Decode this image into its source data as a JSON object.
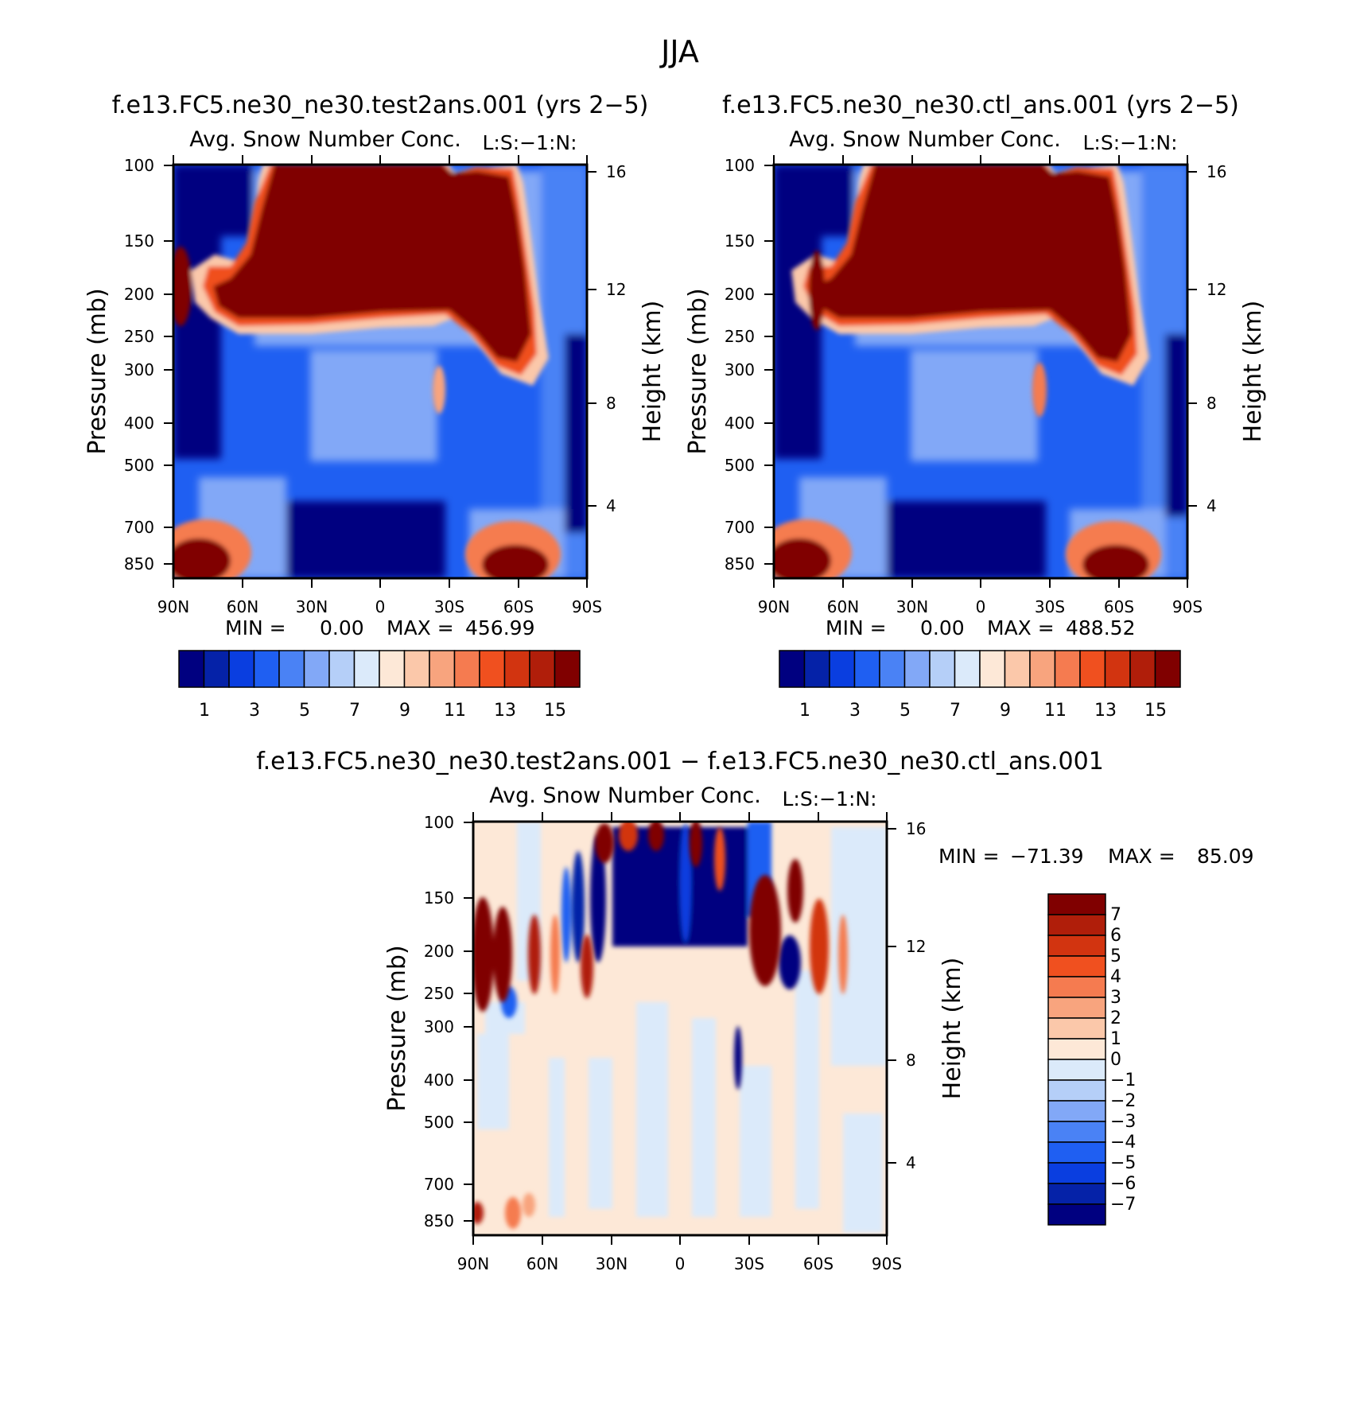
{
  "title": "JJA",
  "panels": [
    {
      "id": "test",
      "case_title": "f.e13.FC5.ne30_ne30.test2ans.001 (yrs 2−5)",
      "var_title": "Avg. Snow Number Conc.",
      "corner_label": "L:S:−1:N:",
      "ylabel": "Pressure (mb)",
      "y2label": "Height (km)",
      "min_label": "MIN =",
      "min_value": "0.00",
      "max_label": "MAX =",
      "max_value": "456.99"
    },
    {
      "id": "ctl",
      "case_title": "f.e13.FC5.ne30_ne30.ctl_ans.001 (yrs 2−5)",
      "var_title": "Avg. Snow Number Conc.",
      "corner_label": "L:S:−1:N:",
      "ylabel": "Pressure (mb)",
      "y2label": "Height (km)",
      "min_label": "MIN =",
      "min_value": "0.00",
      "max_label": "MAX =",
      "max_value": "488.52"
    },
    {
      "id": "diff",
      "case_title": "f.e13.FC5.ne30_ne30.test2ans.001 − f.e13.FC5.ne30_ne30.ctl_ans.001",
      "var_title": "Avg. Snow Number Conc.",
      "corner_label": "L:S:−1:N:",
      "ylabel": "Pressure (mb)",
      "y2label": "Height (km)",
      "min_label": "MIN =",
      "min_value": "−71.39",
      "max_label": "MAX =",
      "max_value": "85.09"
    }
  ],
  "chart_data": [
    {
      "type": "heatmap",
      "title": "Avg. Snow Number Conc.",
      "xlabel": "",
      "ylabel": "Pressure (mb)",
      "y2label": "Height (km)",
      "x_ticks": [
        "90N",
        "60N",
        "30N",
        "0",
        "30S",
        "60S",
        "90S"
      ],
      "y_ticks": [
        "100",
        "150",
        "200",
        "250",
        "300",
        "400",
        "500",
        "700",
        "850"
      ],
      "y2_ticks": [
        "16",
        "12",
        "8",
        "4"
      ],
      "colorbar_labels": [
        "1",
        "3",
        "5",
        "7",
        "9",
        "11",
        "13",
        "15"
      ],
      "levels": [
        1,
        2,
        3,
        4,
        5,
        6,
        7,
        8,
        9,
        10,
        11,
        12,
        13,
        14,
        15
      ],
      "colors": [
        "#000080",
        "#0522a8",
        "#0a3ee0",
        "#1f5ff2",
        "#4a82f5",
        "#82a8f7",
        "#b5cff8",
        "#dbeafa",
        "#fde8d7",
        "#fbc8aa",
        "#f8a47e",
        "#f57b50",
        "#f0501f",
        "#d23410",
        "#b01e0a",
        "#800000"
      ],
      "min": 0.0,
      "max": 456.99
    },
    {
      "type": "heatmap",
      "title": "Avg. Snow Number Conc.",
      "xlabel": "",
      "ylabel": "Pressure (mb)",
      "y2label": "Height (km)",
      "x_ticks": [
        "90N",
        "60N",
        "30N",
        "0",
        "30S",
        "60S",
        "90S"
      ],
      "y_ticks": [
        "100",
        "150",
        "200",
        "250",
        "300",
        "400",
        "500",
        "700",
        "850"
      ],
      "y2_ticks": [
        "16",
        "12",
        "8",
        "4"
      ],
      "colorbar_labels": [
        "1",
        "3",
        "5",
        "7",
        "9",
        "11",
        "13",
        "15"
      ],
      "levels": [
        1,
        2,
        3,
        4,
        5,
        6,
        7,
        8,
        9,
        10,
        11,
        12,
        13,
        14,
        15
      ],
      "colors": [
        "#000080",
        "#0522a8",
        "#0a3ee0",
        "#1f5ff2",
        "#4a82f5",
        "#82a8f7",
        "#b5cff8",
        "#dbeafa",
        "#fde8d7",
        "#fbc8aa",
        "#f8a47e",
        "#f57b50",
        "#f0501f",
        "#d23410",
        "#b01e0a",
        "#800000"
      ],
      "min": 0.0,
      "max": 488.52
    },
    {
      "type": "heatmap",
      "title": "Avg. Snow Number Conc.",
      "xlabel": "",
      "ylabel": "Pressure (mb)",
      "y2label": "Height (km)",
      "x_ticks": [
        "90N",
        "60N",
        "30N",
        "0",
        "30S",
        "60S",
        "90S"
      ],
      "y_ticks": [
        "100",
        "150",
        "200",
        "250",
        "300",
        "400",
        "500",
        "700",
        "850"
      ],
      "y2_ticks": [
        "16",
        "12",
        "8",
        "4"
      ],
      "colorbar_labels": [
        "7",
        "6",
        "5",
        "4",
        "3",
        "2",
        "1",
        "0",
        "−1",
        "−2",
        "−3",
        "−4",
        "−5",
        "−6",
        "−7"
      ],
      "levels": [
        7,
        6,
        5,
        4,
        3,
        2,
        1,
        0,
        -1,
        -2,
        -3,
        -4,
        -5,
        -6,
        -7
      ],
      "colors": [
        "#800000",
        "#b01e0a",
        "#d23410",
        "#f0501f",
        "#f57b50",
        "#f8a47e",
        "#fbc8aa",
        "#fde8d7",
        "#dbeafa",
        "#b5cff8",
        "#82a8f7",
        "#4a82f5",
        "#1f5ff2",
        "#0a3ee0",
        "#0522a8",
        "#000080"
      ],
      "min": -71.39,
      "max": 85.09
    }
  ]
}
